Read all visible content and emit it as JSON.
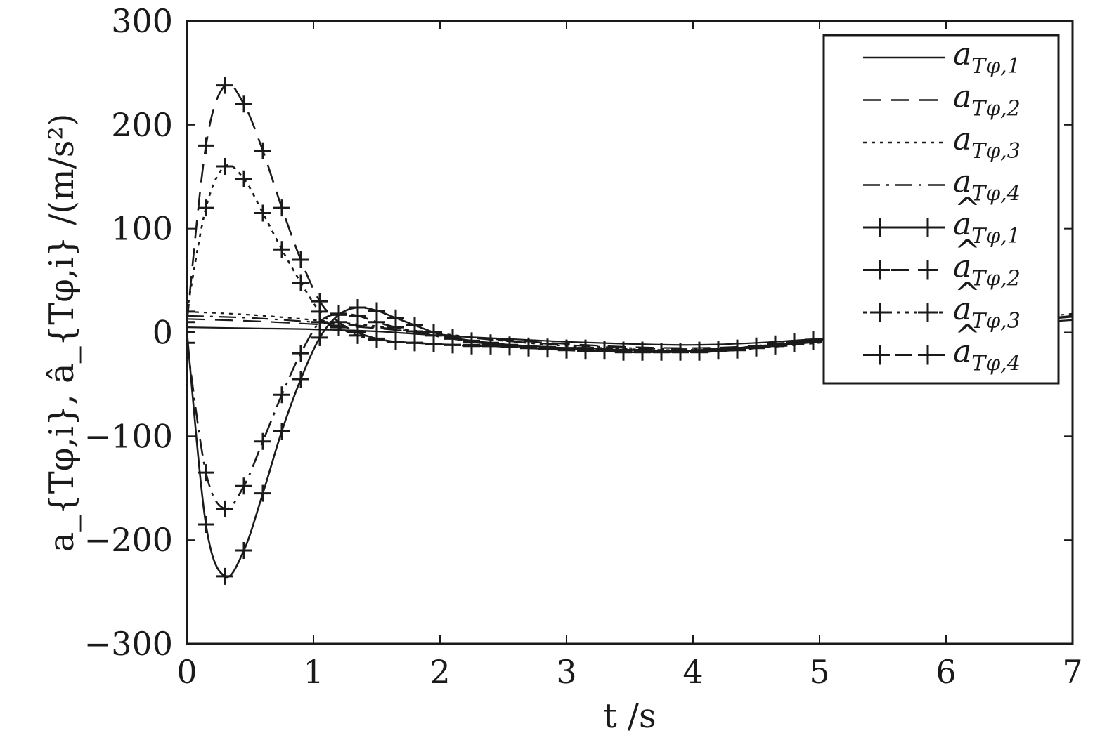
{
  "chart_data": {
    "type": "line",
    "xlabel": "t /s",
    "ylabel": "a_{Tφ,i}, â_{Tφ,i} /(m/s²)",
    "xlim": [
      0,
      7
    ],
    "ylim": [
      -300,
      300
    ],
    "x_ticks": [
      0,
      1,
      2,
      3,
      4,
      5,
      6,
      7
    ],
    "y_ticks": [
      300,
      200,
      100,
      0,
      -100,
      -200,
      -300
    ],
    "x_tick_labels": [
      "0",
      "1",
      "2",
      "3",
      "4",
      "5",
      "6",
      "7"
    ],
    "y_tick_labels": [
      "300",
      "200",
      "100",
      "0",
      "−100",
      "−200",
      "−300"
    ],
    "grid": false,
    "legend_position": "top-right",
    "colors": {
      "ink": "#1a1a1a",
      "background": "#ffffff"
    },
    "series": [
      {
        "name": "a_{Tφ,1}",
        "label_main": "a",
        "label_sub": "Tφ,1",
        "hat": false,
        "style": "solid",
        "markers": false,
        "x": [
          0,
          0.5,
          1,
          1.5,
          2,
          2.5,
          3,
          3.5,
          4,
          4.5,
          5,
          5.5,
          6,
          6.5,
          7
        ],
        "y": [
          5,
          4,
          3,
          1,
          -3,
          -6,
          -9,
          -11,
          -12,
          -10,
          -6,
          -1,
          4,
          8,
          12
        ]
      },
      {
        "name": "a_{Tφ,2}",
        "label_main": "a",
        "label_sub": "Tφ,2",
        "hat": false,
        "style": "dashed",
        "markers": false,
        "x": [
          0,
          0.5,
          1,
          1.5,
          2,
          2.5,
          3,
          3.5,
          4,
          4.5,
          5,
          5.5,
          6,
          6.5,
          7
        ],
        "y": [
          13,
          11,
          8,
          4,
          -2,
          -7,
          -11,
          -14,
          -15,
          -13,
          -8,
          -2,
          5,
          10,
          15
        ]
      },
      {
        "name": "a_{Tφ,3}",
        "label_main": "a",
        "label_sub": "Tφ,3",
        "hat": false,
        "style": "dotted",
        "markers": false,
        "x": [
          0,
          0.5,
          1,
          1.5,
          2,
          2.5,
          3,
          3.5,
          4,
          4.5,
          5,
          5.5,
          6,
          6.5,
          7
        ],
        "y": [
          20,
          17,
          12,
          6,
          -1,
          -8,
          -13,
          -16,
          -17,
          -15,
          -10,
          -3,
          5,
          12,
          18
        ]
      },
      {
        "name": "a_{Tφ,4}",
        "label_main": "a",
        "label_sub": "Tφ,4",
        "hat": false,
        "style": "dashdot",
        "markers": false,
        "x": [
          0,
          0.5,
          1,
          1.5,
          2,
          2.5,
          3,
          3.5,
          4,
          4.5,
          5,
          5.5,
          6,
          6.5,
          7
        ],
        "y": [
          16,
          14,
          10,
          5,
          -2,
          -8,
          -12,
          -15,
          -16,
          -14,
          -9,
          -3,
          4,
          10,
          16
        ]
      },
      {
        "name": "â_{Tφ,1}",
        "label_main": "a",
        "label_sub": "Tφ,1",
        "hat": true,
        "style": "solid",
        "markers": true,
        "x": [
          0,
          0.15,
          0.3,
          0.45,
          0.6,
          0.75,
          0.9,
          1.05,
          1.2,
          1.35,
          1.5,
          1.65,
          1.8,
          1.95,
          2.1,
          2.25,
          2.4,
          2.55,
          2.7,
          2.85,
          3.0,
          3.15,
          3.3,
          3.45,
          3.6,
          3.75,
          3.9,
          4.05,
          4.2,
          4.35,
          4.5,
          4.65,
          4.8,
          4.95,
          5.1
        ],
        "y": [
          0,
          -185,
          -235,
          -210,
          -155,
          -95,
          -45,
          -5,
          17,
          24,
          21,
          14,
          7,
          0,
          -5,
          -8,
          -10,
          -12,
          -13,
          -14,
          -15,
          -15,
          -16,
          -17,
          -17,
          -18,
          -18,
          -18,
          -17,
          -16,
          -14,
          -12,
          -10,
          -8,
          -5
        ]
      },
      {
        "name": "â_{Tφ,2}",
        "label_main": "a",
        "label_sub": "Tφ,2",
        "hat": true,
        "style": "dashed",
        "markers": true,
        "x": [
          0,
          0.15,
          0.3,
          0.45,
          0.6,
          0.75,
          0.9,
          1.05,
          1.2,
          1.35,
          1.5,
          1.65,
          1.8,
          1.95,
          2.1,
          2.25,
          2.4,
          2.55,
          2.7,
          2.85,
          3.0,
          3.15,
          3.3,
          3.45,
          3.6,
          3.75,
          3.9,
          4.05,
          4.2,
          4.35,
          4.5,
          4.65,
          4.8,
          4.95,
          5.1
        ],
        "y": [
          10,
          180,
          238,
          220,
          175,
          120,
          70,
          30,
          10,
          0,
          -6,
          -9,
          -10,
          -11,
          -12,
          -12,
          -13,
          -14,
          -15,
          -16,
          -17,
          -18,
          -18,
          -19,
          -19,
          -19,
          -19,
          -19,
          -18,
          -17,
          -15,
          -13,
          -11,
          -9,
          -6
        ]
      },
      {
        "name": "â_{Tφ,3}",
        "label_main": "a",
        "label_sub": "Tφ,3",
        "hat": true,
        "style": "dotted",
        "markers": true,
        "x": [
          0,
          0.15,
          0.3,
          0.45,
          0.6,
          0.75,
          0.9,
          1.05,
          1.2,
          1.35,
          1.5,
          1.65,
          1.8,
          1.95,
          2.1,
          2.25,
          2.4,
          2.55,
          2.7,
          2.85,
          3.0,
          3.15,
          3.3,
          3.45,
          3.6,
          3.75,
          3.9,
          4.05,
          4.2,
          4.35,
          4.5,
          4.65,
          4.8,
          4.95,
          5.1
        ],
        "y": [
          20,
          120,
          160,
          148,
          115,
          80,
          48,
          20,
          5,
          -3,
          -7,
          -9,
          -10,
          -11,
          -12,
          -13,
          -13,
          -14,
          -15,
          -16,
          -17,
          -18,
          -18,
          -19,
          -19,
          -19,
          -19,
          -19,
          -18,
          -17,
          -15,
          -13,
          -11,
          -9,
          -7
        ]
      },
      {
        "name": "â_{Tφ,4}",
        "label_main": "a",
        "label_sub": "Tφ,4",
        "hat": true,
        "style": "dashdot",
        "markers": true,
        "x": [
          0,
          0.15,
          0.3,
          0.45,
          0.6,
          0.75,
          0.9,
          1.05,
          1.2,
          1.35,
          1.5,
          1.65,
          1.8,
          1.95,
          2.1,
          2.25,
          2.4,
          2.55,
          2.7,
          2.85,
          3.0,
          3.15,
          3.3,
          3.45,
          3.6,
          3.75,
          3.9,
          4.05,
          4.2,
          4.35,
          4.5,
          4.65,
          4.8,
          4.95,
          5.1
        ],
        "y": [
          -10,
          -135,
          -170,
          -148,
          -105,
          -60,
          -20,
          10,
          18,
          16,
          10,
          5,
          1,
          -3,
          -6,
          -9,
          -11,
          -13,
          -14,
          -15,
          -16,
          -16,
          -17,
          -17,
          -17,
          -18,
          -18,
          -17,
          -16,
          -15,
          -13,
          -11,
          -9,
          -7,
          -4
        ]
      }
    ]
  }
}
